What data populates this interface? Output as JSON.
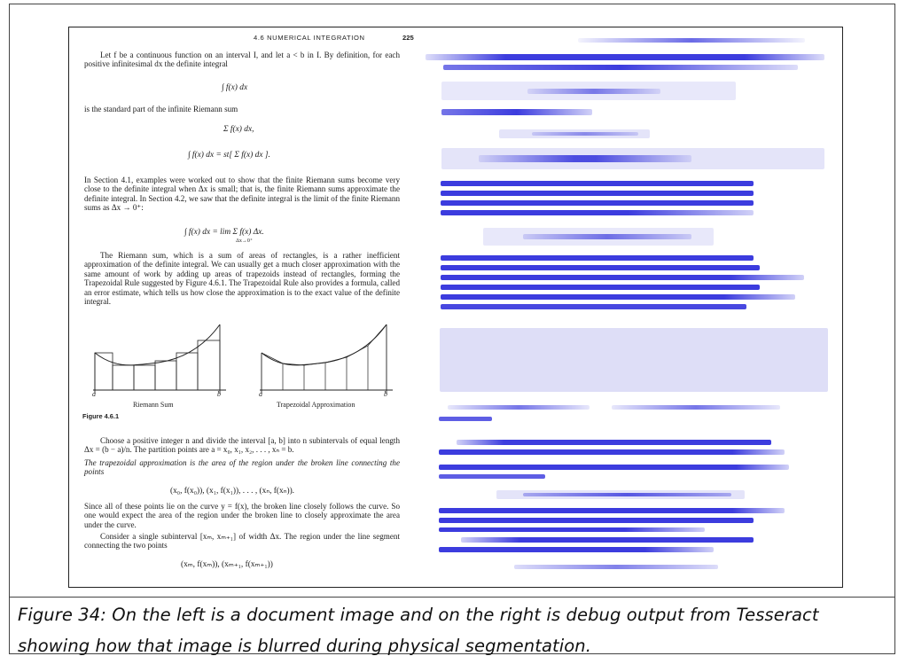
{
  "document": {
    "running_head": "4.6  NUMERICAL INTEGRATION",
    "page_number": "225",
    "para1": "Let f be a continuous function on an interval I, and let a < b in I. By definition, for each positive infinitesimal dx the definite integral",
    "eq1": "∫ f(x) dx",
    "para2": "is the standard part of the infinite Riemann sum",
    "eq2": "Σ f(x) dx,",
    "eq3": "∫ f(x) dx = st[ Σ f(x) dx ].",
    "para3": "In Section 4.1, examples were worked out to show that the finite Riemann sums become very close to the definite integral when Δx is small; that is, the finite Riemann sums approximate the definite integral. In Section 4.2, we saw that the definite integral is the limit of the finite Riemann sums as Δx → 0⁺:",
    "eq4": "∫ f(x) dx =  lim  Σ f(x) Δx.",
    "eq4_sub": "Δx→0⁺",
    "para4": "The Riemann sum, which is a sum of areas of rectangles, is a rather inefficient approximation of the definite integral. We can usually get a much closer approximation with the same amount of work by adding up areas of trapezoids instead of rectangles, forming the Trapezoidal Rule suggested by Figure 4.6.1. The Trapezoidal Rule also provides a formula, called an error estimate, which tells us how close the approximation is to the exact value of the definite integral.",
    "figure_left_label": "Riemann Sum",
    "figure_right_label": "Trapezoidal Approximation",
    "axis_a": "a",
    "axis_b": "b",
    "figure_number": "Figure 4.6.1",
    "para5": "Choose a positive integer n and divide the interval [a, b] into n subintervals of equal length Δx = (b − a)/n. The partition points are a = x₀, x₁, x₂, . . . , xₙ = b.",
    "para6": "The trapezoidal approximation is the area of the region under the broken line connecting the points",
    "eq5": "(x₀, f(x₀)), (x₁, f(x₁)), . . . , (xₙ, f(xₙ)).",
    "para7": "Since all of these points lie on the curve y = f(x), the broken line closely follows the curve. So one would expect the area of the region under the broken line to closely approximate the area under the curve.",
    "para8": "Consider a single subinterval [xₘ, xₘ₊₁] of width Δx. The region under the line segment connecting the two points",
    "eq6": "(xₘ, f(xₘ)),        (xₘ₊₁, f(xₘ₊₁))"
  },
  "caption": "Figure 34: On the left is a document image and on the right is debug output from Tesseract showing how that image is blurred during physical segmentation.",
  "colors": {
    "blur_strong": "#1a1ad8",
    "blur_light": "#d8d8f6",
    "ink": "#1a1a1a",
    "frame": "#222222"
  }
}
